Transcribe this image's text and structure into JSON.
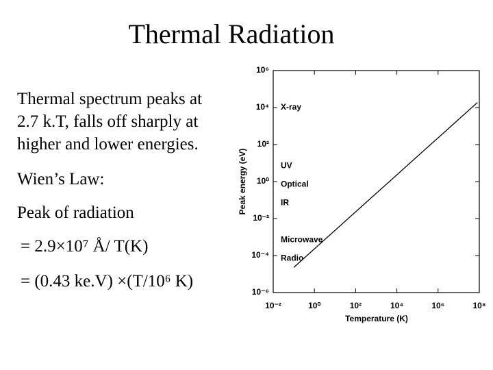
{
  "title": "Thermal Radiation",
  "body": {
    "lines": [
      "Thermal spectrum peaks at",
      "2.7 k.T, falls off sharply at",
      "higher and lower energies.",
      "Wien’s Law:",
      "Peak of radiation",
      "= 2.9×10⁷ Å/ T(K)",
      "= (0.43 ke.V) ×(T/10⁶ K)"
    ]
  },
  "chart_data": {
    "type": "line",
    "xlabel": "Temperature (K)",
    "ylabel": "Peak energy (eV)",
    "log_x": true,
    "log_y": true,
    "x": [
      0.1,
      80000000
    ],
    "values": [
      2.3e-05,
      18600
    ],
    "color": "#000000",
    "xlim": [
      0.01,
      100000000
    ],
    "ylim": [
      1e-06,
      1000000
    ],
    "xticks": [
      {
        "value": 0.01,
        "label": "10⁻²"
      },
      {
        "value": 1,
        "label": "10⁰"
      },
      {
        "value": 100,
        "label": "10²"
      },
      {
        "value": 10000,
        "label": "10⁴"
      },
      {
        "value": 1000000,
        "label": "10⁶"
      },
      {
        "value": 100000000,
        "label": "10⁸"
      }
    ],
    "yticks": [
      {
        "value": 1e-06,
        "label": "10⁻⁶"
      },
      {
        "value": 0.0001,
        "label": "10⁻⁴"
      },
      {
        "value": 0.01,
        "label": "10⁻²"
      },
      {
        "value": 1,
        "label": "10⁰"
      },
      {
        "value": 100,
        "label": "10²"
      },
      {
        "value": 10000,
        "label": "10⁴"
      },
      {
        "value": 1000000,
        "label": "10⁶"
      }
    ],
    "annotations": [
      {
        "text": "X-ray",
        "y": 10000
      },
      {
        "text": "UV",
        "y": 7
      },
      {
        "text": "Optical",
        "y": 0.7
      },
      {
        "text": "IR",
        "y": 0.07
      },
      {
        "text": "Microwave",
        "y": 0.0007
      },
      {
        "text": "Radio",
        "y": 7e-05
      }
    ]
  }
}
